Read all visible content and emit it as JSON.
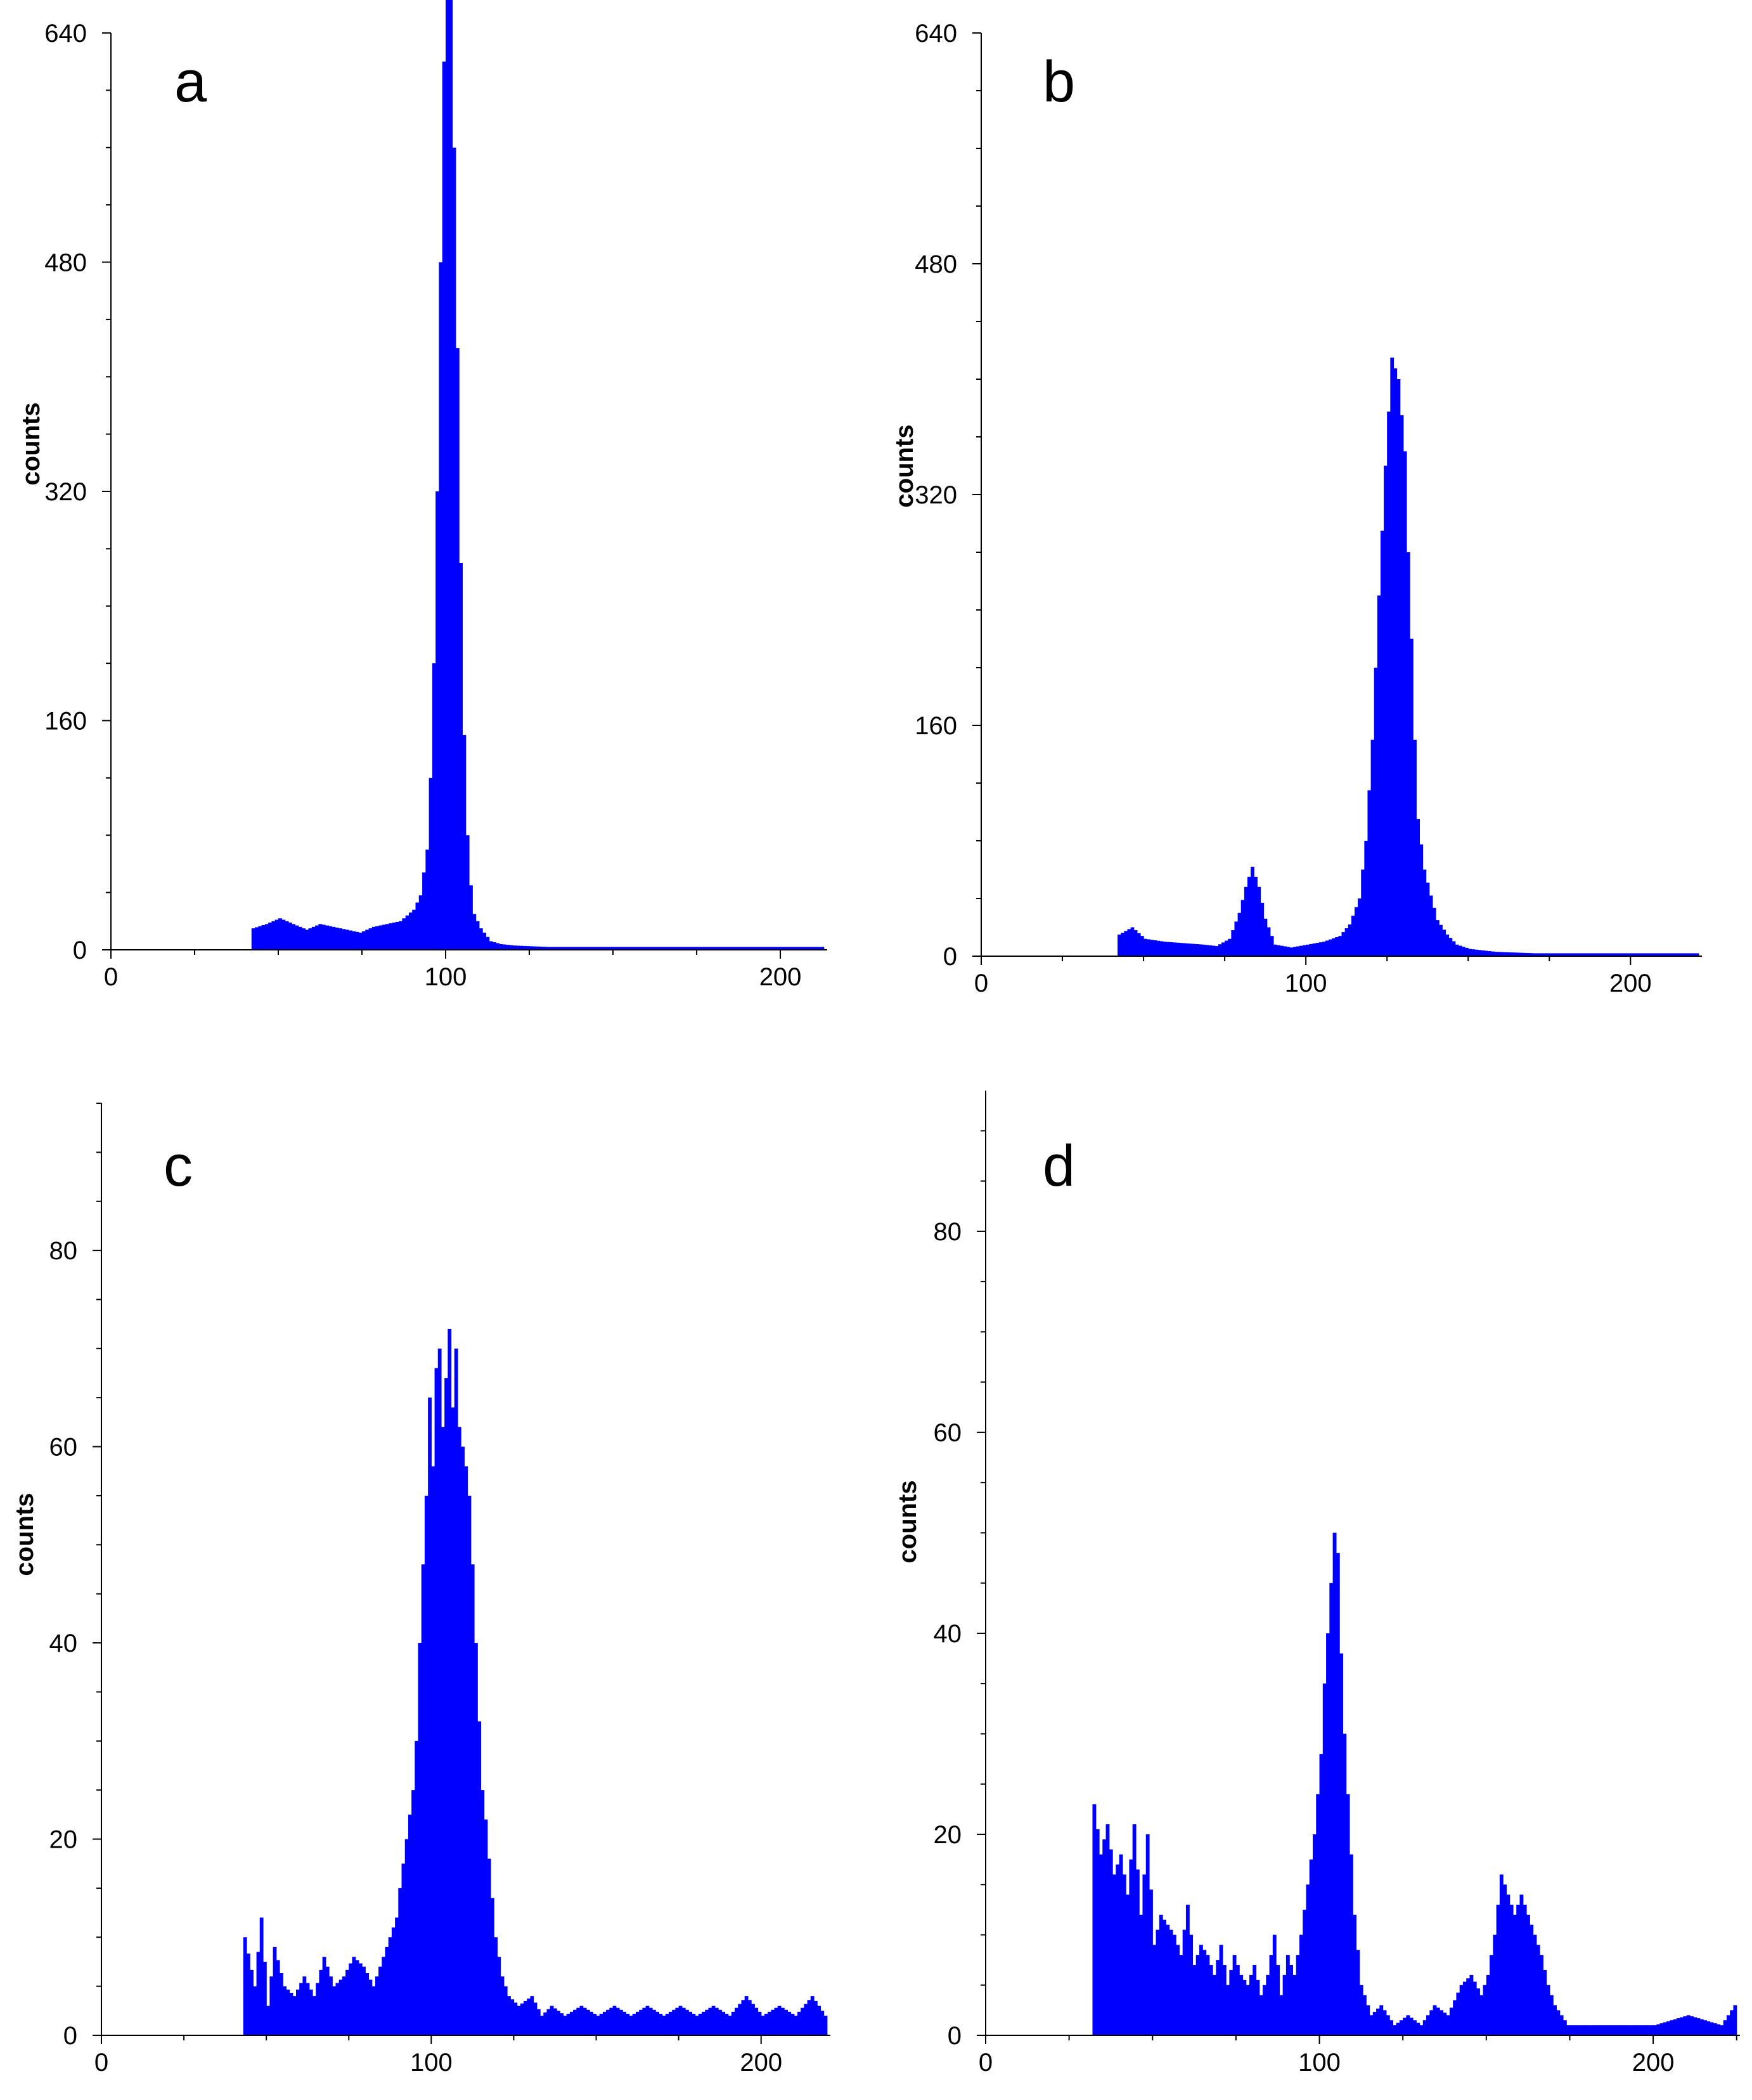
{
  "chart_data": [
    {
      "panel": "a",
      "type": "bar",
      "ylabel": "counts",
      "xlabel": "",
      "xlim": [
        0,
        214
      ],
      "ylim": [
        0,
        640
      ],
      "xticks": [
        0,
        100,
        200
      ],
      "yticks": [
        0,
        160,
        320,
        480,
        640
      ],
      "bar_color": "#0000ff",
      "points": [
        [
          42,
          15
        ],
        [
          46,
          18
        ],
        [
          50,
          22
        ],
        [
          54,
          18
        ],
        [
          58,
          14
        ],
        [
          62,
          18
        ],
        [
          66,
          16
        ],
        [
          70,
          14
        ],
        [
          74,
          12
        ],
        [
          78,
          16
        ],
        [
          82,
          18
        ],
        [
          86,
          20
        ],
        [
          88,
          24
        ],
        [
          90,
          28
        ],
        [
          92,
          38
        ],
        [
          94,
          70
        ],
        [
          95,
          120
        ],
        [
          96,
          200
        ],
        [
          97,
          320
        ],
        [
          98,
          480
        ],
        [
          99,
          620
        ],
        [
          100,
          690
        ],
        [
          101,
          670
        ],
        [
          102,
          560
        ],
        [
          103,
          420
        ],
        [
          104,
          270
        ],
        [
          105,
          150
        ],
        [
          106,
          80
        ],
        [
          107,
          45
        ],
        [
          108,
          25
        ],
        [
          110,
          15
        ],
        [
          113,
          6
        ],
        [
          116,
          4
        ],
        [
          120,
          3
        ],
        [
          130,
          2
        ],
        [
          150,
          2
        ],
        [
          170,
          2
        ],
        [
          190,
          2
        ],
        [
          212,
          2
        ]
      ]
    },
    {
      "panel": "b",
      "type": "bar",
      "ylabel": "counts",
      "xlabel": "",
      "xlim": [
        0,
        222
      ],
      "ylim": [
        0,
        640
      ],
      "xticks": [
        0,
        100,
        200
      ],
      "yticks": [
        0,
        160,
        320,
        480,
        640
      ],
      "bar_color": "#0000ff",
      "points": [
        [
          42,
          15
        ],
        [
          46,
          20
        ],
        [
          50,
          12
        ],
        [
          56,
          10
        ],
        [
          62,
          9
        ],
        [
          68,
          8
        ],
        [
          72,
          7
        ],
        [
          76,
          12
        ],
        [
          79,
          30
        ],
        [
          81,
          48
        ],
        [
          83,
          62
        ],
        [
          85,
          48
        ],
        [
          87,
          26
        ],
        [
          90,
          8
        ],
        [
          95,
          6
        ],
        [
          100,
          8
        ],
        [
          105,
          10
        ],
        [
          110,
          14
        ],
        [
          113,
          22
        ],
        [
          116,
          40
        ],
        [
          118,
          80
        ],
        [
          120,
          150
        ],
        [
          122,
          250
        ],
        [
          124,
          340
        ],
        [
          126,
          415
        ],
        [
          128,
          400
        ],
        [
          130,
          350
        ],
        [
          131,
          280
        ],
        [
          132,
          220
        ],
        [
          133,
          150
        ],
        [
          134,
          95
        ],
        [
          136,
          60
        ],
        [
          138,
          42
        ],
        [
          140,
          25
        ],
        [
          143,
          15
        ],
        [
          146,
          8
        ],
        [
          150,
          5
        ],
        [
          158,
          3
        ],
        [
          170,
          2
        ],
        [
          190,
          2
        ],
        [
          220,
          2
        ]
      ]
    },
    {
      "panel": "c",
      "type": "bar",
      "ylabel": "counts",
      "xlabel": "",
      "xlim": [
        0,
        221
      ],
      "ylim": [
        0,
        95
      ],
      "xticks": [
        0,
        100,
        200
      ],
      "yticks": [
        0,
        20,
        40,
        60,
        80
      ],
      "bar_color": "#0000ff",
      "points": [
        [
          43,
          10
        ],
        [
          46,
          5
        ],
        [
          48,
          12
        ],
        [
          50,
          3
        ],
        [
          52,
          9
        ],
        [
          55,
          5
        ],
        [
          58,
          4
        ],
        [
          61,
          6
        ],
        [
          64,
          4
        ],
        [
          67,
          8
        ],
        [
          70,
          5
        ],
        [
          73,
          6
        ],
        [
          76,
          8
        ],
        [
          79,
          7
        ],
        [
          82,
          5
        ],
        [
          85,
          8
        ],
        [
          87,
          10
        ],
        [
          89,
          12
        ],
        [
          90,
          15
        ],
        [
          92,
          20
        ],
        [
          94,
          25
        ],
        [
          95,
          30
        ],
        [
          96,
          40
        ],
        [
          97,
          48
        ],
        [
          98,
          55
        ],
        [
          99,
          65
        ],
        [
          100,
          58
        ],
        [
          101,
          68
        ],
        [
          102,
          70
        ],
        [
          103,
          62
        ],
        [
          104,
          67
        ],
        [
          105,
          72
        ],
        [
          106,
          64
        ],
        [
          107,
          70
        ],
        [
          108,
          62
        ],
        [
          109,
          60
        ],
        [
          110,
          58
        ],
        [
          111,
          55
        ],
        [
          112,
          48
        ],
        [
          113,
          40
        ],
        [
          114,
          32
        ],
        [
          115,
          25
        ],
        [
          116,
          22
        ],
        [
          117,
          18
        ],
        [
          118,
          14
        ],
        [
          119,
          10
        ],
        [
          121,
          6
        ],
        [
          123,
          4
        ],
        [
          126,
          3
        ],
        [
          130,
          4
        ],
        [
          133,
          2
        ],
        [
          136,
          3
        ],
        [
          140,
          2
        ],
        [
          145,
          3
        ],
        [
          150,
          2
        ],
        [
          155,
          3
        ],
        [
          160,
          2
        ],
        [
          165,
          3
        ],
        [
          170,
          2
        ],
        [
          175,
          3
        ],
        [
          180,
          2
        ],
        [
          185,
          3
        ],
        [
          190,
          2
        ],
        [
          195,
          4
        ],
        [
          200,
          2
        ],
        [
          205,
          3
        ],
        [
          210,
          2
        ],
        [
          215,
          4
        ],
        [
          219,
          2
        ]
      ]
    },
    {
      "panel": "d",
      "type": "bar",
      "ylabel": "counts",
      "xlabel": "",
      "xlim": [
        0,
        226
      ],
      "ylim": [
        0,
        94
      ],
      "xticks": [
        0,
        100,
        200
      ],
      "yticks": [
        0,
        20,
        40,
        60,
        80
      ],
      "bar_color": "#0000ff",
      "points": [
        [
          32,
          23
        ],
        [
          34,
          18
        ],
        [
          36,
          21
        ],
        [
          38,
          16
        ],
        [
          40,
          18
        ],
        [
          42,
          14
        ],
        [
          44,
          21
        ],
        [
          46,
          12
        ],
        [
          48,
          20
        ],
        [
          50,
          9
        ],
        [
          52,
          12
        ],
        [
          54,
          11
        ],
        [
          56,
          10
        ],
        [
          58,
          8
        ],
        [
          60,
          13
        ],
        [
          62,
          7
        ],
        [
          64,
          9
        ],
        [
          66,
          8
        ],
        [
          68,
          6
        ],
        [
          70,
          9
        ],
        [
          72,
          5
        ],
        [
          74,
          8
        ],
        [
          76,
          6
        ],
        [
          78,
          5
        ],
        [
          80,
          7
        ],
        [
          82,
          4
        ],
        [
          84,
          6
        ],
        [
          86,
          10
        ],
        [
          88,
          4
        ],
        [
          90,
          8
        ],
        [
          92,
          6
        ],
        [
          94,
          10
        ],
        [
          96,
          15
        ],
        [
          98,
          20
        ],
        [
          100,
          28
        ],
        [
          101,
          35
        ],
        [
          102,
          40
        ],
        [
          103,
          45
        ],
        [
          104,
          50
        ],
        [
          105,
          48
        ],
        [
          106,
          38
        ],
        [
          107,
          30
        ],
        [
          108,
          24
        ],
        [
          109,
          18
        ],
        [
          110,
          12
        ],
        [
          112,
          5
        ],
        [
          115,
          2
        ],
        [
          118,
          3
        ],
        [
          122,
          1
        ],
        [
          126,
          2
        ],
        [
          130,
          1
        ],
        [
          134,
          3
        ],
        [
          138,
          2
        ],
        [
          142,
          5
        ],
        [
          145,
          6
        ],
        [
          148,
          4
        ],
        [
          150,
          6
        ],
        [
          152,
          10
        ],
        [
          154,
          16
        ],
        [
          156,
          14
        ],
        [
          158,
          12
        ],
        [
          160,
          14
        ],
        [
          162,
          12
        ],
        [
          164,
          10
        ],
        [
          166,
          8
        ],
        [
          168,
          5
        ],
        [
          170,
          3
        ],
        [
          174,
          1
        ],
        [
          180,
          1
        ],
        [
          190,
          1
        ],
        [
          200,
          1
        ],
        [
          210,
          2
        ],
        [
          220,
          1
        ],
        [
          224,
          3
        ]
      ]
    }
  ]
}
